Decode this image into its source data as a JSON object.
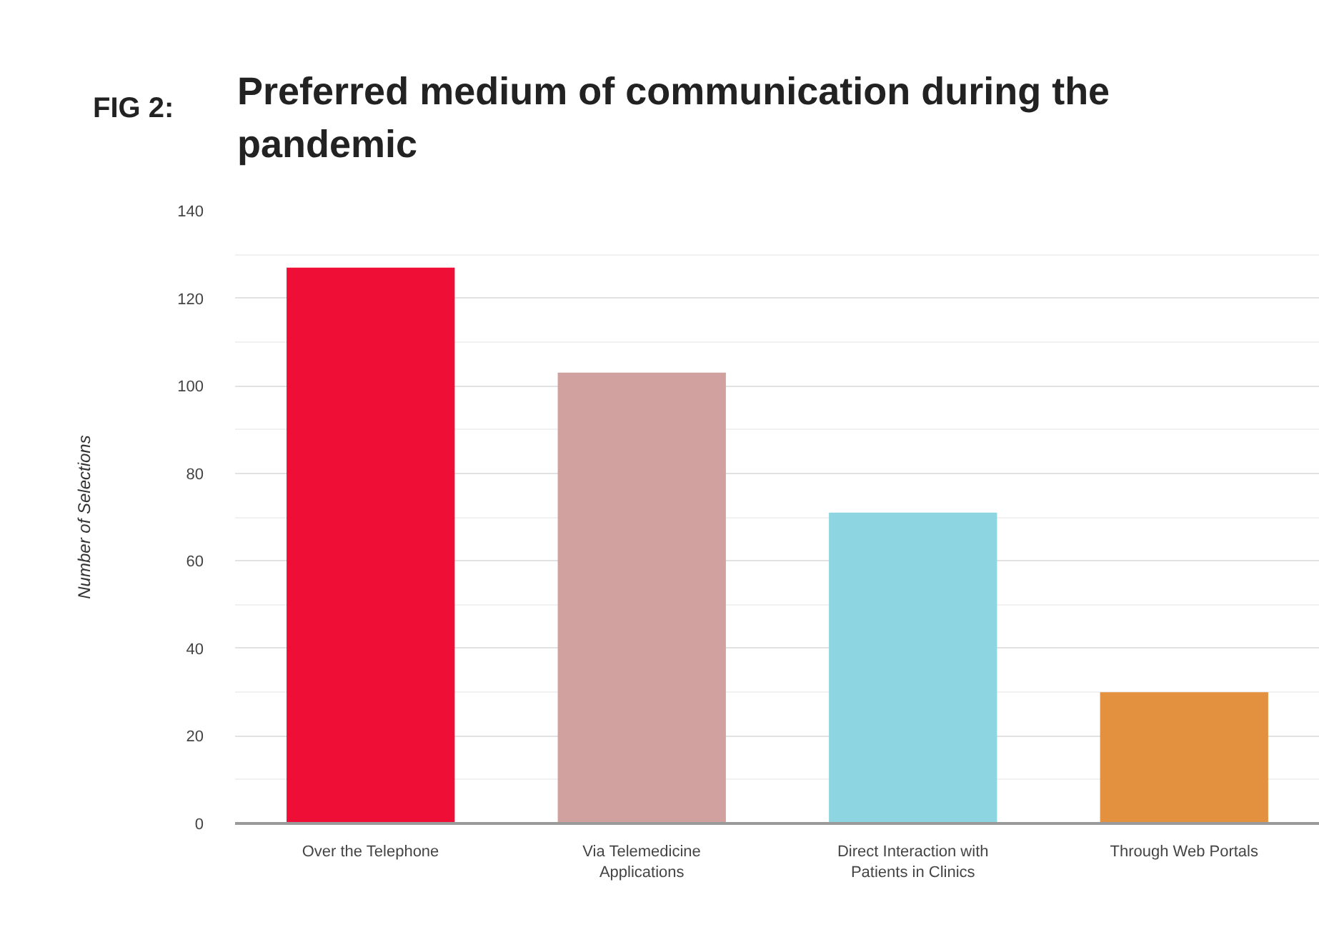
{
  "chart_data": {
    "type": "bar",
    "title": "Preferred medium of communication during the pandemic",
    "annotations": [
      "FIG 2:"
    ],
    "ylabel": "Number of Selections",
    "categories": [
      "Over the Telephone",
      "Via Telemedicine Applications",
      "Direct Interaction with Patients in Clinics",
      "Through Web Portals"
    ],
    "values": [
      127,
      103,
      71,
      30
    ],
    "colors": [
      "#ee0e36",
      "#d0a19e",
      "#8dd5e0",
      "#e3913f"
    ],
    "ylim": [
      0,
      140
    ],
    "yticks": [
      0,
      {
        "value": 10,
        "label": null
      },
      20,
      {
        "value": 30,
        "label": null
      },
      40,
      {
        "value": 50,
        "label": null
      },
      60,
      {
        "value": 70,
        "label": null
      },
      80,
      {
        "value": 90,
        "label": null
      },
      100,
      {
        "value": 110,
        "label": null
      },
      120,
      {
        "value": 130,
        "label": null
      },
      140
    ],
    "grid": "y"
  }
}
